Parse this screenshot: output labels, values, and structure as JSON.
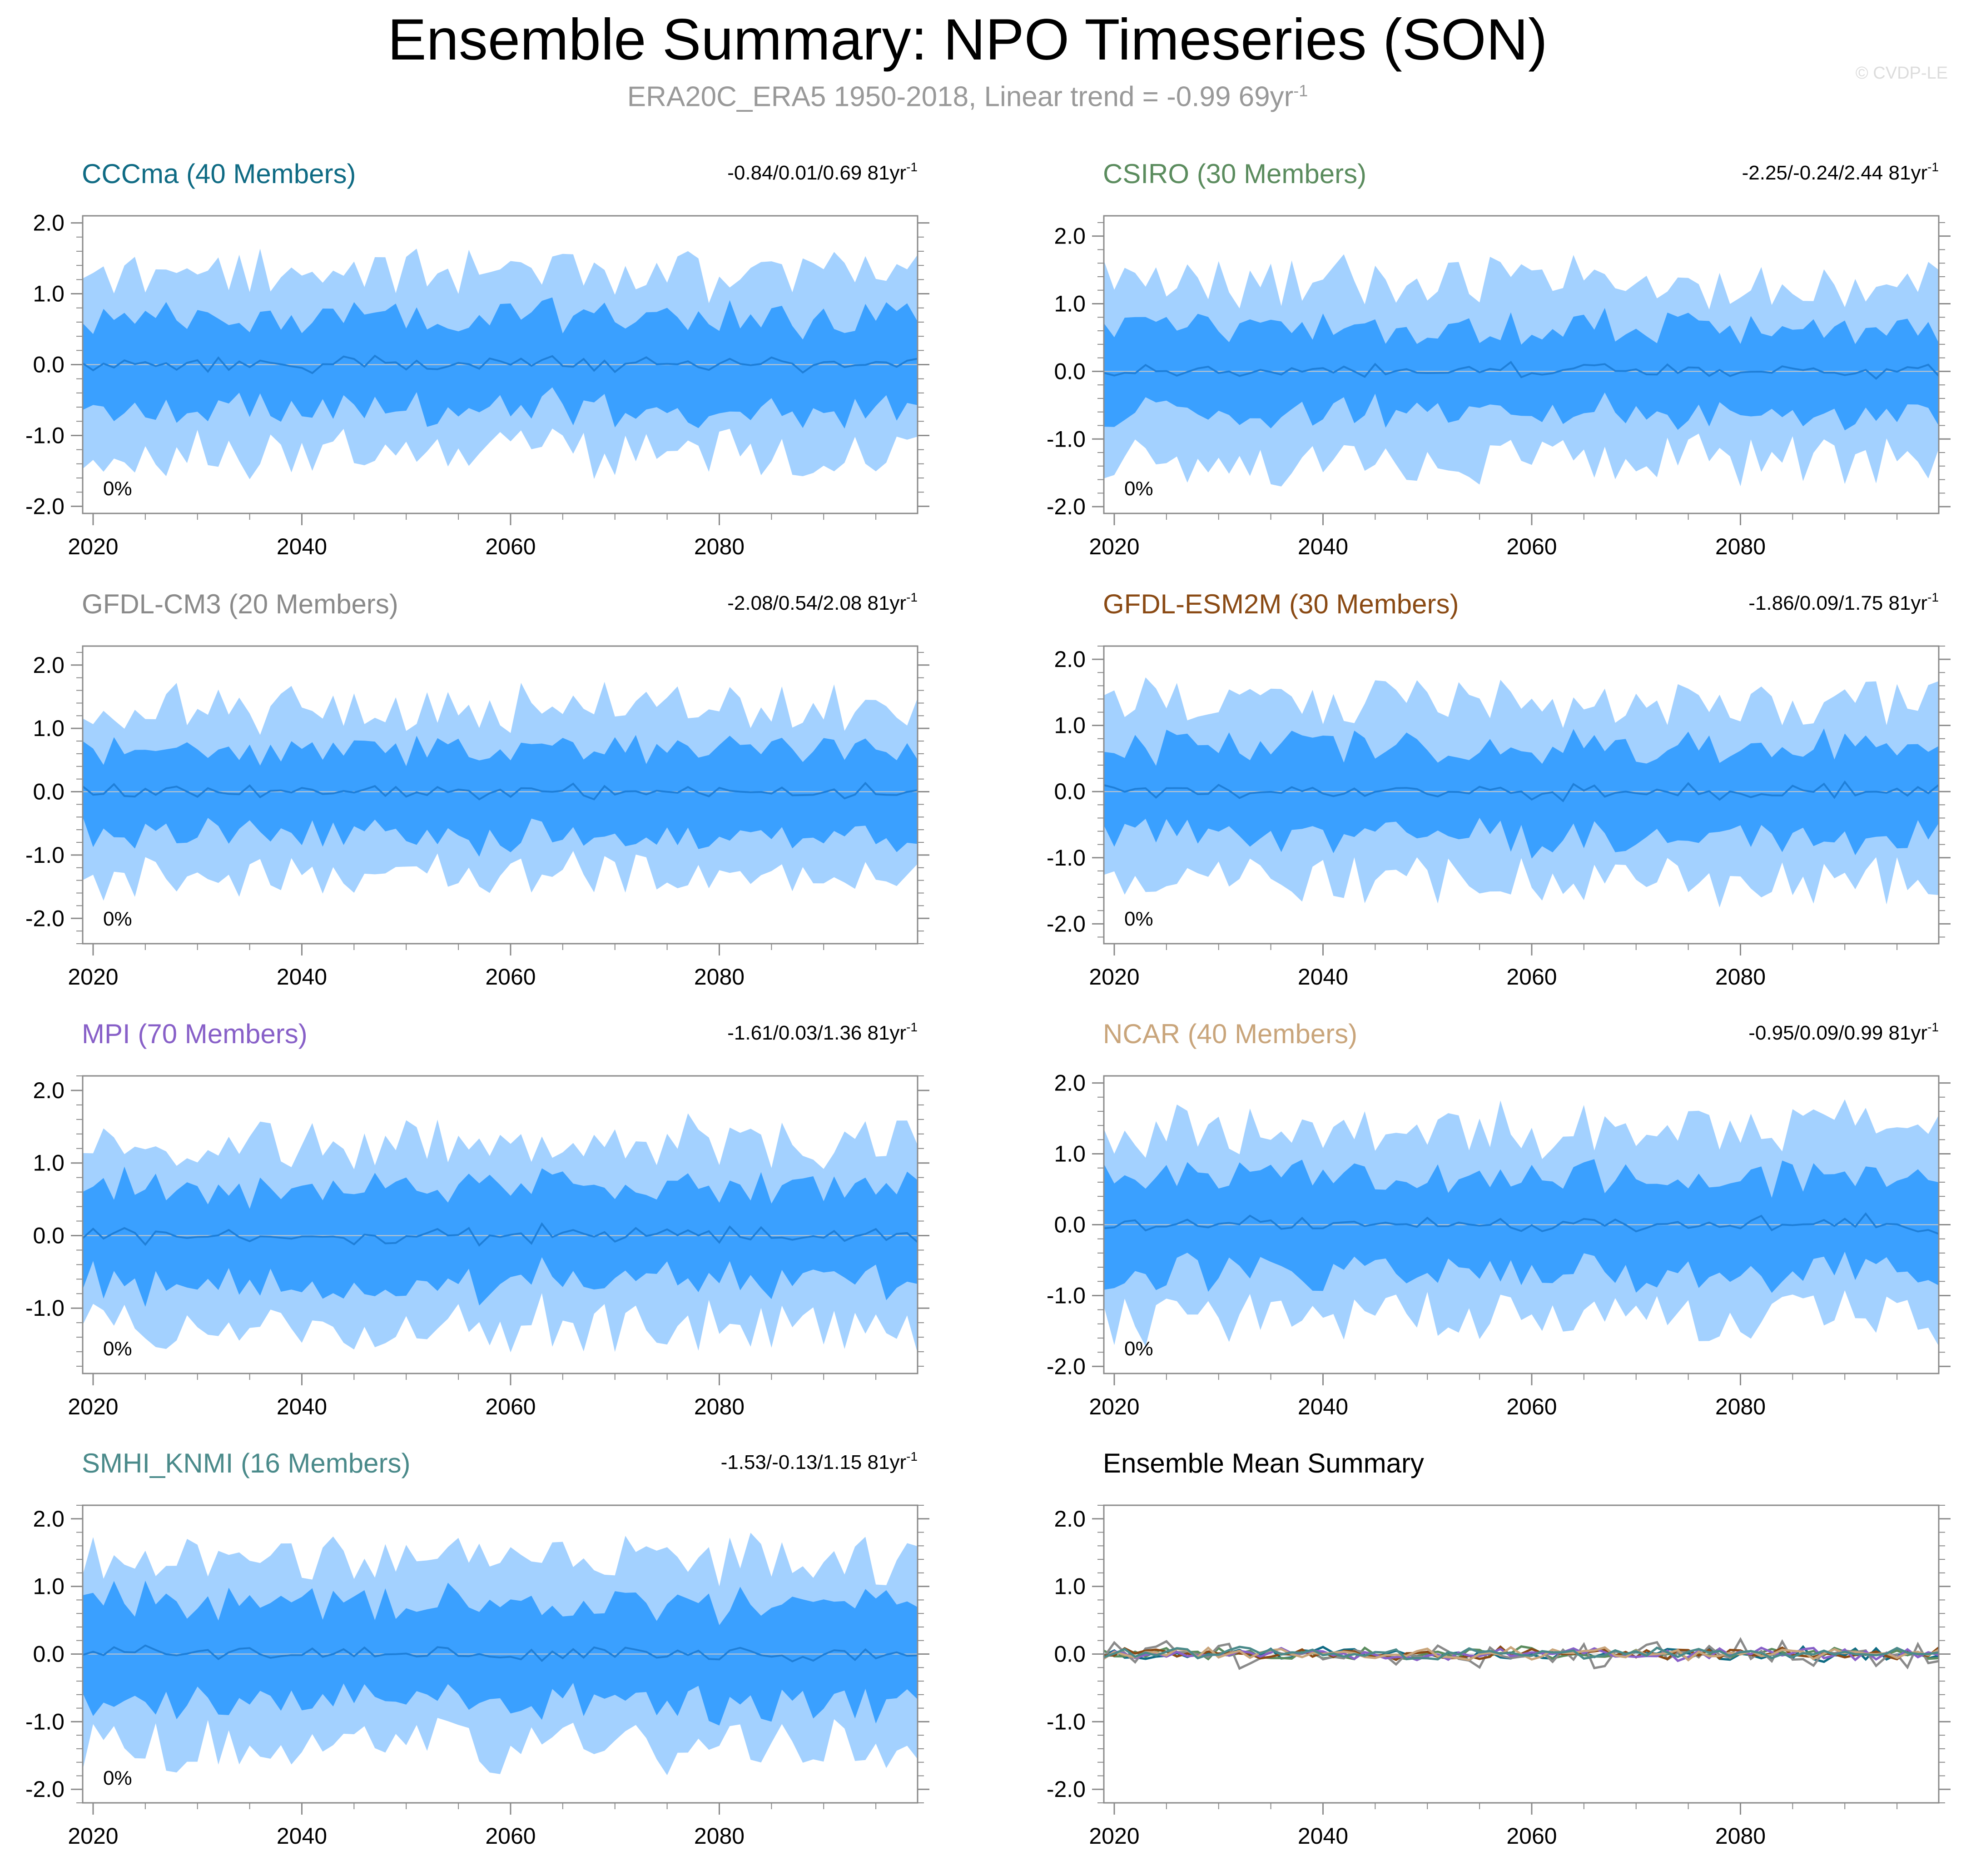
{
  "header": {
    "title": "Ensemble Summary: NPO Timeseries (SON)",
    "subtitle_main": "ERA20C_ERA5 1950-2018, Linear trend = -0.99 69yr",
    "subtitle_sup": "-1",
    "watermark": "© CVDP-LE"
  },
  "colors": {
    "outer_band": "#a3d1ff",
    "inner_band": "#3aa0ff",
    "mean_line": "#1f7fd8",
    "frame": "#8a8a8a",
    "zero_line": "#c8c8c8"
  },
  "chart_data": [
    {
      "type": "area",
      "title": "CCCma (40 Members)",
      "title_color": "#0f6b84",
      "trend_text": "-0.84/0.01/0.69 81yr",
      "trend_sup": "-1",
      "percent_label": "0%",
      "x_range": [
        2019,
        2099
      ],
      "xticks": [
        "2020",
        "2040",
        "2060",
        "2080"
      ],
      "ylim": [
        -2.1,
        2.1
      ],
      "yticks": [
        "2.0",
        "1.0",
        "0.0",
        "-1.0",
        "-2.0"
      ],
      "seed": 3,
      "outer_amp": 1.25,
      "inner_amp": 0.62
    },
    {
      "type": "area",
      "title": "CSIRO (30 Members)",
      "title_color": "#5b8c5e",
      "trend_text": "-2.25/-0.24/2.44 81yr",
      "trend_sup": "-1",
      "percent_label": "0%",
      "x_range": [
        2019,
        2099
      ],
      "xticks": [
        "2020",
        "2040",
        "2060",
        "2080"
      ],
      "ylim": [
        -2.1,
        2.3
      ],
      "yticks": [
        "2.0",
        "1.0",
        "0.0",
        "-1.0",
        "-2.0"
      ],
      "seed": 7,
      "outer_amp": 1.3,
      "inner_amp": 0.6
    },
    {
      "type": "area",
      "title": "GFDL-CM3 (20 Members)",
      "title_color": "#8a8a8a",
      "trend_text": "-2.08/0.54/2.08 81yr",
      "trend_sup": "-1",
      "percent_label": "0%",
      "x_range": [
        2019,
        2099
      ],
      "xticks": [
        "2020",
        "2040",
        "2060",
        "2080"
      ],
      "ylim": [
        -2.4,
        2.3
      ],
      "yticks": [
        "2.0",
        "1.0",
        "0.0",
        "-1.0",
        "-2.0"
      ],
      "seed": 11,
      "outer_amp": 1.3,
      "inner_amp": 0.65
    },
    {
      "type": "area",
      "title": "GFDL-ESM2M (30 Members)",
      "title_color": "#8a4a14",
      "trend_text": "-1.86/0.09/1.75 81yr",
      "trend_sup": "-1",
      "percent_label": "0%",
      "x_range": [
        2019,
        2099
      ],
      "xticks": [
        "2020",
        "2040",
        "2060",
        "2080"
      ],
      "ylim": [
        -2.3,
        2.2
      ],
      "yticks": [
        "2.0",
        "1.0",
        "0.0",
        "-1.0",
        "-2.0"
      ],
      "seed": 17,
      "outer_amp": 1.3,
      "inner_amp": 0.65
    },
    {
      "type": "area",
      "title": "MPI (70 Members)",
      "title_color": "#8860c8",
      "trend_text": "-1.61/0.03/1.36 81yr",
      "trend_sup": "-1",
      "percent_label": "0%",
      "x_range": [
        2019,
        2099
      ],
      "xticks": [
        "2020",
        "2040",
        "2060",
        "2080"
      ],
      "ylim": [
        -1.9,
        2.2
      ],
      "yticks": [
        "2.0",
        "1.0",
        "0.0",
        "-1.0"
      ],
      "seed": 23,
      "outer_amp": 1.25,
      "inner_amp": 0.62
    },
    {
      "type": "area",
      "title": "NCAR (40 Members)",
      "title_color": "#c9a57b",
      "trend_text": "-0.95/0.09/0.99 81yr",
      "trend_sup": "-1",
      "percent_label": "0%",
      "x_range": [
        2019,
        2099
      ],
      "xticks": [
        "2020",
        "2040",
        "2060",
        "2080"
      ],
      "ylim": [
        -2.1,
        2.1
      ],
      "yticks": [
        "2.0",
        "1.0",
        "0.0",
        "-1.0",
        "-2.0"
      ],
      "seed": 29,
      "outer_amp": 1.3,
      "inner_amp": 0.65
    },
    {
      "type": "area",
      "title": "SMHI_KNMI (16 Members)",
      "title_color": "#4a8a8a",
      "trend_text": "-1.53/-0.13/1.15 81yr",
      "trend_sup": "-1",
      "percent_label": "0%",
      "x_range": [
        2019,
        2099
      ],
      "xticks": [
        "2020",
        "2040",
        "2060",
        "2080"
      ],
      "ylim": [
        -2.2,
        2.2
      ],
      "yticks": [
        "2.0",
        "1.0",
        "0.0",
        "-1.0",
        "-2.0"
      ],
      "seed": 37,
      "outer_amp": 1.35,
      "inner_amp": 0.7
    },
    {
      "type": "line",
      "title": "Ensemble Mean Summary",
      "title_color": "#000000",
      "trend_text": "",
      "trend_sup": "",
      "percent_label": "",
      "x_range": [
        2019,
        2099
      ],
      "xticks": [
        "2020",
        "2040",
        "2060",
        "2080"
      ],
      "ylim": [
        -2.2,
        2.2
      ],
      "yticks": [
        "2.0",
        "1.0",
        "0.0",
        "-1.0",
        "-2.0"
      ],
      "series_colors": [
        "#0f6b84",
        "#5b8c5e",
        "#8a8a8a",
        "#8a4a14",
        "#8860c8",
        "#c9a57b",
        "#4a8a8a"
      ],
      "seed": 41
    }
  ]
}
